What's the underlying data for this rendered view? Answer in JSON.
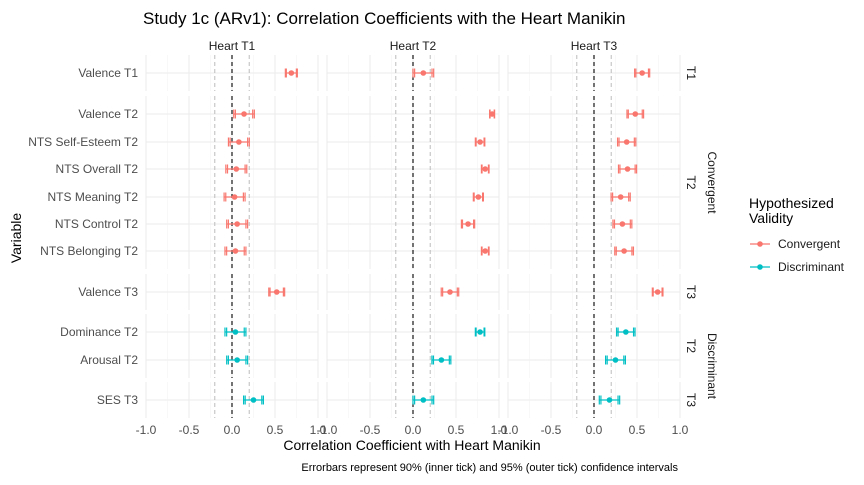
{
  "chart_data": {
    "type": "forest",
    "title": "Study 1c (ARv1): Correlation Coefficients with the Heart Manikin",
    "xlabel": "Correlation Coefficient with Heart Manikin",
    "ylabel": "Variable",
    "caption": "Errorbars represent 90% (inner tick) and 95% (outer tick) confidence intervals",
    "xlim": [
      -1.0,
      1.0
    ],
    "x_ticks": [
      "-1.0",
      "-0.5",
      "0.0",
      "0.5",
      "1.0"
    ],
    "reference_lines": [
      -0.2,
      0.0,
      0.2
    ],
    "grid": true,
    "panels": [
      "Heart T1",
      "Heart T2",
      "Heart T3"
    ],
    "strip_outer": [
      "Convergent",
      "Discriminant"
    ],
    "strip_inner": [
      "T1",
      "T2",
      "T3",
      "T2",
      "T3"
    ],
    "legend": {
      "title": "Hypothesized Validity",
      "entries": [
        {
          "label": "Convergent",
          "color": "#f8766d"
        },
        {
          "label": "Discriminant",
          "color": "#00bfc4"
        }
      ],
      "position": "right"
    },
    "rows": [
      {
        "label": "Valence T1",
        "validity": "Convergent",
        "values": [
          0.69,
          0.12,
          0.56
        ]
      },
      {
        "label": "Valence T2",
        "validity": "Convergent",
        "values": [
          0.14,
          0.92,
          0.48
        ]
      },
      {
        "label": "NTS Self-Esteem T2",
        "validity": "Convergent",
        "values": [
          0.08,
          0.78,
          0.38
        ]
      },
      {
        "label": "NTS Overall T2",
        "validity": "Convergent",
        "values": [
          0.05,
          0.84,
          0.39
        ]
      },
      {
        "label": "NTS Meaning T2",
        "validity": "Convergent",
        "values": [
          0.03,
          0.76,
          0.31
        ]
      },
      {
        "label": "NTS Control T2",
        "validity": "Convergent",
        "values": [
          0.06,
          0.64,
          0.33
        ]
      },
      {
        "label": "NTS Belonging T2",
        "validity": "Convergent",
        "values": [
          0.04,
          0.84,
          0.35
        ]
      },
      {
        "label": "Valence T3",
        "validity": "Convergent",
        "values": [
          0.52,
          0.43,
          0.74
        ]
      },
      {
        "label": "Dominance T2",
        "validity": "Discriminant",
        "values": [
          0.04,
          0.78,
          0.37
        ]
      },
      {
        "label": "Arousal T2",
        "validity": "Discriminant",
        "values": [
          0.06,
          0.33,
          0.25
        ]
      },
      {
        "label": "SES T3",
        "validity": "Discriminant",
        "values": [
          0.25,
          0.12,
          0.18
        ]
      }
    ]
  }
}
